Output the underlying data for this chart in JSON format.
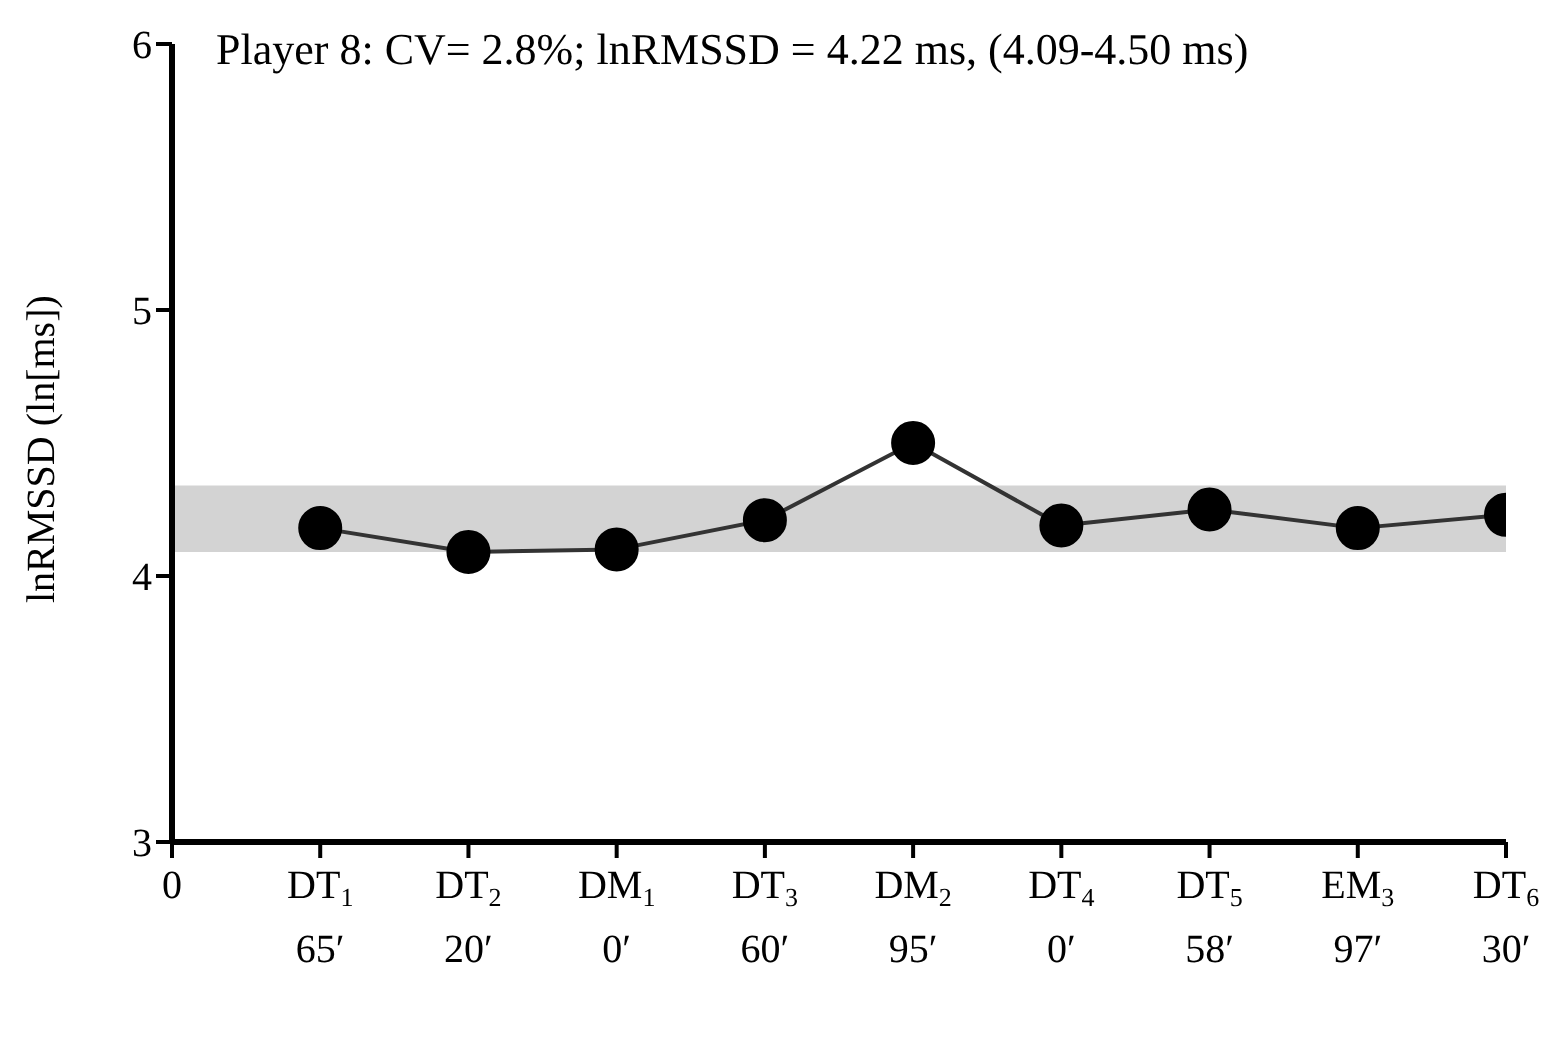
{
  "chart_data": {
    "type": "line",
    "title": "Player 8: CV= 2.8%; lnRMSSD = 4.22 ms, (4.09-4.50 ms)",
    "ylabel": "lnRMSSD (ln[ms])",
    "categories": [
      "0",
      "DT$_{1}$\n65′",
      "DT$_{2}$\n20′",
      "DM$_{1}$\n0′",
      "DT$_{3}$\n60′",
      "DM$_{2}$\n95′",
      "DT$_{4}$\n0′",
      "DT$_{5}$\n58′",
      "EM$_{3}$\n97′",
      "DT$_{6}$\n30′"
    ],
    "series": [
      {
        "color": "#000000",
        "values": [
          null,
          4.18,
          4.09,
          4.1,
          4.21,
          4.5,
          4.19,
          4.25,
          4.18,
          4.23
        ]
      }
    ],
    "ylim": [
      3,
      6
    ],
    "yticks": [
      3,
      4,
      5,
      6
    ],
    "bands": [
      {
        "axis": "y",
        "from": 4.09,
        "to": 4.34,
        "color": "#d3d3d3"
      }
    ],
    "grid": false,
    "marker": "circle",
    "line_style": "solid"
  }
}
